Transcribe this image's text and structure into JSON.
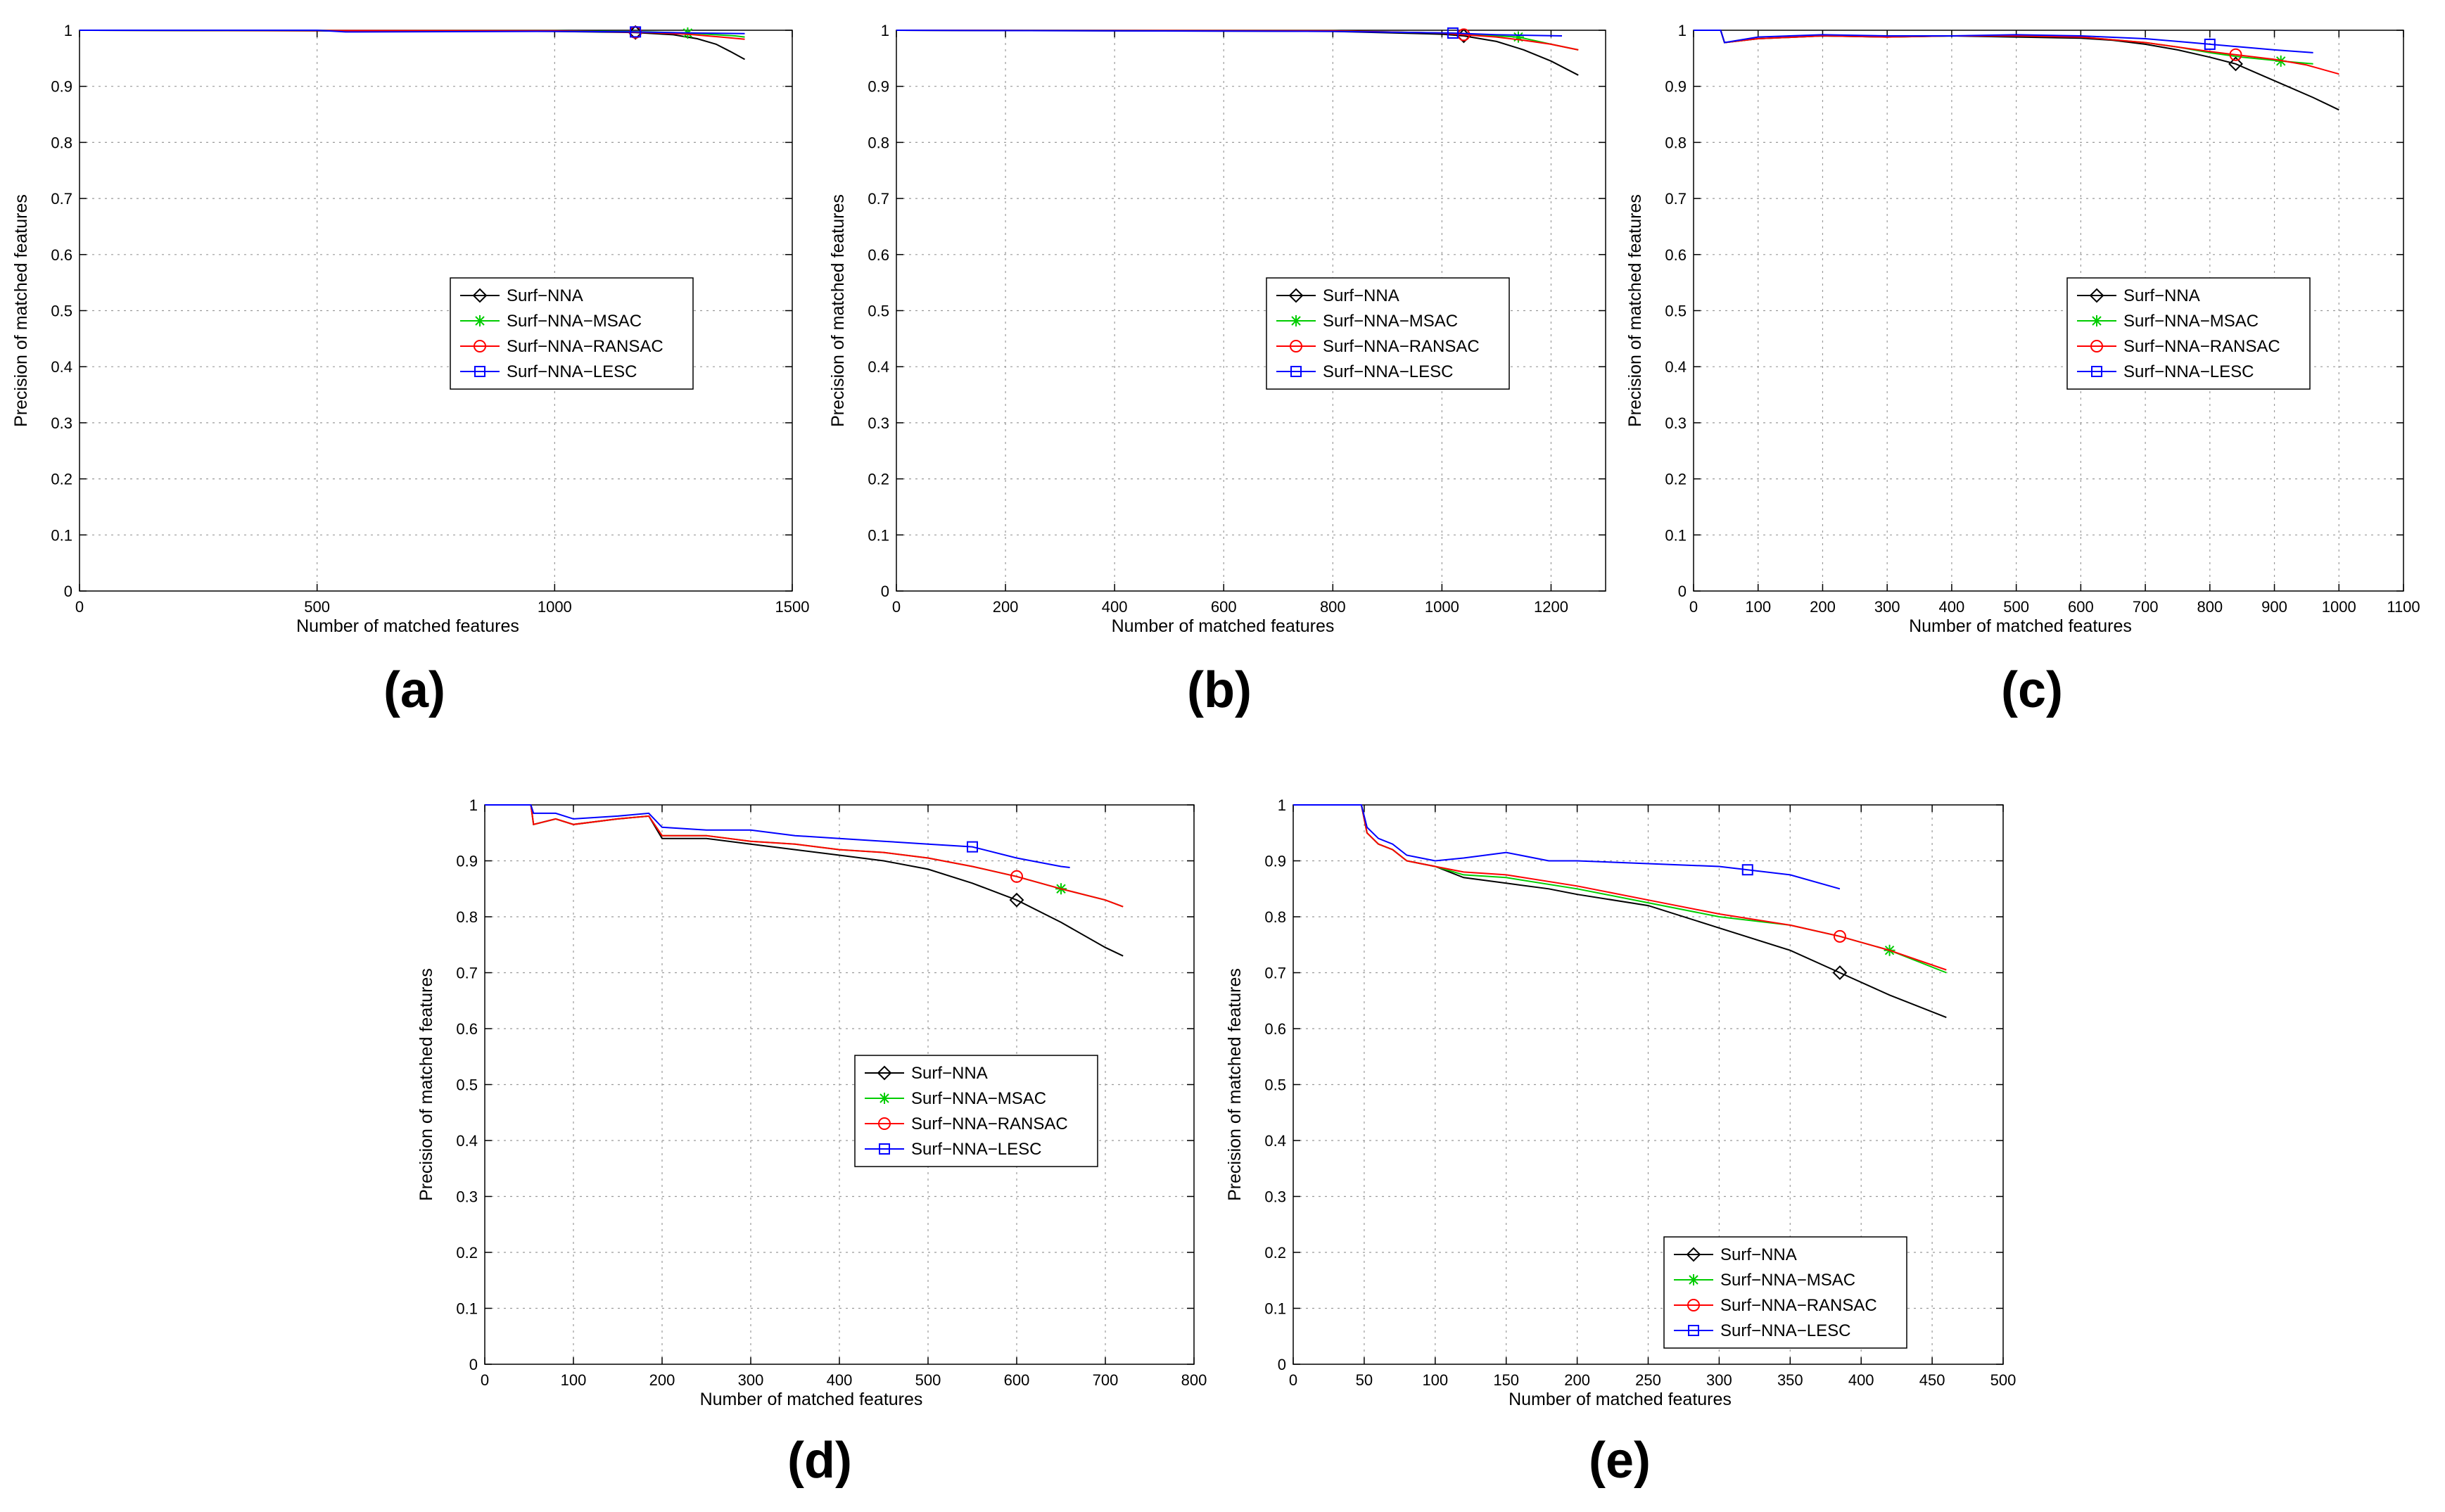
{
  "figure": {
    "description_labels": [
      "(a)",
      "(b)",
      "(c)",
      "(d)",
      "(e)"
    ]
  },
  "chart_data": [
    {
      "type": "line",
      "caption": "(a)",
      "xlabel": "Number of matched features",
      "ylabel": "Precision of matched features",
      "xlim": [
        0,
        1500
      ],
      "ylim": [
        0,
        1
      ],
      "xticks": [
        0,
        500,
        1000,
        1500
      ],
      "yticks": [
        0,
        0.1,
        0.2,
        0.3,
        0.4,
        0.5,
        0.6,
        0.7,
        0.8,
        0.9,
        1
      ],
      "grid": true,
      "legend_position": "center",
      "series": [
        {
          "name": "Surf−NNA",
          "color": "#000000",
          "marker": "diamond",
          "x": [
            0,
            1000,
            1170,
            1250,
            1300,
            1340,
            1370,
            1400
          ],
          "y": [
            1,
            0.998,
            0.996,
            0.992,
            0.985,
            0.975,
            0.962,
            0.948
          ],
          "marker_x": 1170
        },
        {
          "name": "Surf−NNA−MSAC",
          "color": "#00cc00",
          "marker": "star",
          "x": [
            0,
            1000,
            1200,
            1280,
            1320,
            1380,
            1400
          ],
          "y": [
            1,
            0.999,
            0.997,
            0.995,
            0.993,
            0.99,
            0.988
          ],
          "marker_x": 1280
        },
        {
          "name": "Surf−NNA−RANSAC",
          "color": "#ff0000",
          "marker": "circle",
          "x": [
            0,
            1000,
            1200,
            1280,
            1350,
            1400
          ],
          "y": [
            1,
            0.999,
            0.996,
            0.993,
            0.988,
            0.984
          ],
          "marker_x": 1170
        },
        {
          "name": "Surf−NNA−LESC",
          "color": "#0000ff",
          "marker": "square",
          "x": [
            0,
            500,
            560,
            1000,
            1170,
            1300,
            1400
          ],
          "y": [
            1,
            1,
            0.997,
            0.998,
            0.997,
            0.995,
            0.994
          ],
          "marker_x": 1170
        }
      ]
    },
    {
      "type": "line",
      "caption": "(b)",
      "xlabel": "Number of matched features",
      "ylabel": "Precision of matched features",
      "xlim": [
        0,
        1300
      ],
      "ylim": [
        0,
        1
      ],
      "xticks": [
        0,
        200,
        400,
        600,
        800,
        1000,
        1200
      ],
      "yticks": [
        0,
        0.1,
        0.2,
        0.3,
        0.4,
        0.5,
        0.6,
        0.7,
        0.8,
        0.9,
        1
      ],
      "grid": true,
      "legend_position": "center",
      "series": [
        {
          "name": "Surf−NNA",
          "color": "#000000",
          "marker": "diamond",
          "x": [
            0,
            800,
            1000,
            1040,
            1100,
            1150,
            1200,
            1250
          ],
          "y": [
            1,
            0.998,
            0.993,
            0.99,
            0.98,
            0.965,
            0.945,
            0.92
          ],
          "marker_x": 1040
        },
        {
          "name": "Surf−NNA−MSAC",
          "color": "#00cc00",
          "marker": "star",
          "x": [
            0,
            800,
            1000,
            1140,
            1200,
            1250
          ],
          "y": [
            1,
            0.999,
            0.995,
            0.988,
            0.975,
            0.965
          ],
          "marker_x": 1140
        },
        {
          "name": "Surf−NNA−RANSAC",
          "color": "#ff0000",
          "marker": "circle",
          "x": [
            0,
            800,
            1000,
            1040,
            1100,
            1150,
            1200,
            1250
          ],
          "y": [
            1,
            0.999,
            0.995,
            0.992,
            0.988,
            0.982,
            0.975,
            0.965
          ],
          "marker_x": 1040
        },
        {
          "name": "Surf−NNA−LESC",
          "color": "#0000ff",
          "marker": "square",
          "x": [
            0,
            800,
            1020,
            1100,
            1220
          ],
          "y": [
            1,
            0.998,
            0.995,
            0.992,
            0.99
          ],
          "marker_x": 1020
        }
      ]
    },
    {
      "type": "line",
      "caption": "(c)",
      "xlabel": "Number of matched features",
      "ylabel": "Precision of matched features",
      "xlim": [
        0,
        1100
      ],
      "ylim": [
        0,
        1
      ],
      "xticks": [
        0,
        100,
        200,
        300,
        400,
        500,
        600,
        700,
        800,
        900,
        1000,
        1100
      ],
      "yticks": [
        0,
        0.1,
        0.2,
        0.3,
        0.4,
        0.5,
        0.6,
        0.7,
        0.8,
        0.9,
        1
      ],
      "grid": true,
      "legend_position": "center",
      "series": [
        {
          "name": "Surf−NNA",
          "color": "#000000",
          "marker": "diamond",
          "x": [
            0,
            42,
            48,
            100,
            200,
            300,
            400,
            500,
            600,
            650,
            700,
            750,
            800,
            840,
            880,
            920,
            960,
            1000
          ],
          "y": [
            1,
            1,
            0.978,
            0.985,
            0.99,
            0.988,
            0.99,
            0.988,
            0.986,
            0.982,
            0.975,
            0.965,
            0.952,
            0.94,
            0.92,
            0.9,
            0.88,
            0.858
          ],
          "marker_x": 840
        },
        {
          "name": "Surf−NNA−MSAC",
          "color": "#00cc00",
          "marker": "star",
          "x": [
            0,
            42,
            48,
            100,
            200,
            300,
            400,
            500,
            600,
            700,
            750,
            800,
            850,
            910,
            960
          ],
          "y": [
            1,
            1,
            0.978,
            0.985,
            0.99,
            0.988,
            0.99,
            0.99,
            0.988,
            0.978,
            0.97,
            0.96,
            0.952,
            0.945,
            0.94
          ],
          "marker_x": 910
        },
        {
          "name": "Surf−NNA−RANSAC",
          "color": "#ff0000",
          "marker": "circle",
          "x": [
            0,
            42,
            48,
            100,
            200,
            300,
            400,
            500,
            600,
            700,
            750,
            800,
            850,
            900,
            950,
            1000
          ],
          "y": [
            1,
            1,
            0.978,
            0.985,
            0.99,
            0.988,
            0.99,
            0.99,
            0.988,
            0.978,
            0.97,
            0.962,
            0.955,
            0.948,
            0.938,
            0.922
          ],
          "marker_x": 840
        },
        {
          "name": "Surf−NNA−LESC",
          "color": "#0000ff",
          "marker": "square",
          "x": [
            0,
            42,
            48,
            100,
            200,
            300,
            400,
            500,
            600,
            700,
            750,
            800,
            850,
            900,
            960
          ],
          "y": [
            1,
            1,
            0.978,
            0.988,
            0.992,
            0.99,
            0.99,
            0.992,
            0.99,
            0.985,
            0.98,
            0.975,
            0.97,
            0.965,
            0.96
          ],
          "marker_x": 800
        }
      ]
    },
    {
      "type": "line",
      "caption": "(d)",
      "xlabel": "Number of matched features",
      "ylabel": "Precision of matched features",
      "xlim": [
        0,
        800
      ],
      "ylim": [
        0,
        1
      ],
      "xticks": [
        0,
        100,
        200,
        300,
        400,
        500,
        600,
        700,
        800
      ],
      "yticks": [
        0,
        0.1,
        0.2,
        0.3,
        0.4,
        0.5,
        0.6,
        0.7,
        0.8,
        0.9,
        1
      ],
      "grid": true,
      "legend_position": "center",
      "series": [
        {
          "name": "Surf−NNA",
          "color": "#000000",
          "marker": "diamond",
          "x": [
            0,
            52,
            55,
            80,
            100,
            150,
            185,
            200,
            250,
            300,
            350,
            400,
            450,
            500,
            550,
            600,
            650,
            700,
            720
          ],
          "y": [
            1,
            1,
            0.965,
            0.975,
            0.965,
            0.975,
            0.98,
            0.94,
            0.94,
            0.93,
            0.92,
            0.91,
            0.9,
            0.885,
            0.86,
            0.83,
            0.79,
            0.745,
            0.73
          ],
          "marker_x": 600
        },
        {
          "name": "Surf−NNA−MSAC",
          "color": "#00cc00",
          "marker": "star",
          "x": [
            0,
            52,
            55,
            80,
            100,
            150,
            185,
            200,
            250,
            300,
            350,
            400,
            450,
            500,
            550,
            600,
            650,
            700,
            720
          ],
          "y": [
            1,
            1,
            0.965,
            0.975,
            0.965,
            0.975,
            0.98,
            0.945,
            0.945,
            0.935,
            0.93,
            0.92,
            0.915,
            0.905,
            0.89,
            0.872,
            0.85,
            0.83,
            0.818
          ],
          "marker_x": 650
        },
        {
          "name": "Surf−NNA−RANSAC",
          "color": "#ff0000",
          "marker": "circle",
          "x": [
            0,
            52,
            55,
            80,
            100,
            150,
            185,
            200,
            250,
            300,
            350,
            400,
            450,
            500,
            550,
            600,
            650,
            700,
            720
          ],
          "y": [
            1,
            1,
            0.965,
            0.975,
            0.965,
            0.975,
            0.98,
            0.945,
            0.945,
            0.935,
            0.93,
            0.92,
            0.915,
            0.905,
            0.89,
            0.872,
            0.85,
            0.83,
            0.818
          ],
          "marker_x": 600
        },
        {
          "name": "Surf−NNA−LESC",
          "color": "#0000ff",
          "marker": "square",
          "x": [
            0,
            52,
            55,
            80,
            100,
            150,
            185,
            200,
            250,
            300,
            350,
            400,
            450,
            500,
            550,
            600,
            650,
            660
          ],
          "y": [
            1,
            1,
            0.985,
            0.985,
            0.975,
            0.98,
            0.985,
            0.96,
            0.955,
            0.955,
            0.945,
            0.94,
            0.935,
            0.93,
            0.925,
            0.905,
            0.89,
            0.888
          ],
          "marker_x": 550
        }
      ]
    },
    {
      "type": "line",
      "caption": "(e)",
      "xlabel": "Number of matched features",
      "ylabel": "Precision of matched features",
      "xlim": [
        0,
        500
      ],
      "ylim": [
        0,
        1
      ],
      "xticks": [
        0,
        50,
        100,
        150,
        200,
        250,
        300,
        350,
        400,
        450,
        500
      ],
      "yticks": [
        0,
        0.1,
        0.2,
        0.3,
        0.4,
        0.5,
        0.6,
        0.7,
        0.8,
        0.9,
        1
      ],
      "grid": true,
      "legend_position": "bottom",
      "series": [
        {
          "name": "Surf−NNA",
          "color": "#000000",
          "marker": "diamond",
          "x": [
            0,
            48,
            52,
            60,
            70,
            80,
            90,
            100,
            120,
            150,
            180,
            200,
            250,
            300,
            350,
            385,
            420,
            460
          ],
          "y": [
            1,
            1,
            0.95,
            0.93,
            0.92,
            0.9,
            0.895,
            0.89,
            0.87,
            0.86,
            0.85,
            0.84,
            0.82,
            0.78,
            0.74,
            0.7,
            0.66,
            0.62
          ],
          "marker_x": 385
        },
        {
          "name": "Surf−NNA−MSAC",
          "color": "#00cc00",
          "marker": "star",
          "x": [
            0,
            48,
            52,
            60,
            70,
            80,
            90,
            100,
            120,
            150,
            200,
            250,
            300,
            350,
            385,
            420,
            460
          ],
          "y": [
            1,
            1,
            0.95,
            0.93,
            0.92,
            0.9,
            0.895,
            0.89,
            0.875,
            0.87,
            0.85,
            0.825,
            0.8,
            0.785,
            0.765,
            0.74,
            0.7
          ],
          "marker_x": 420
        },
        {
          "name": "Surf−NNA−RANSAC",
          "color": "#ff0000",
          "marker": "circle",
          "x": [
            0,
            48,
            52,
            60,
            70,
            80,
            90,
            100,
            120,
            150,
            200,
            250,
            300,
            350,
            385,
            420,
            460
          ],
          "y": [
            1,
            1,
            0.95,
            0.93,
            0.92,
            0.9,
            0.895,
            0.89,
            0.88,
            0.875,
            0.855,
            0.83,
            0.805,
            0.785,
            0.765,
            0.74,
            0.705
          ],
          "marker_x": 385
        },
        {
          "name": "Surf−NNA−LESC",
          "color": "#0000ff",
          "marker": "square",
          "x": [
            0,
            48,
            52,
            60,
            70,
            80,
            90,
            100,
            120,
            150,
            180,
            200,
            250,
            300,
            350,
            385
          ],
          "y": [
            1,
            1,
            0.96,
            0.94,
            0.93,
            0.91,
            0.905,
            0.9,
            0.905,
            0.915,
            0.9,
            0.9,
            0.895,
            0.89,
            0.875,
            0.85
          ],
          "marker_x": 320
        }
      ]
    }
  ]
}
